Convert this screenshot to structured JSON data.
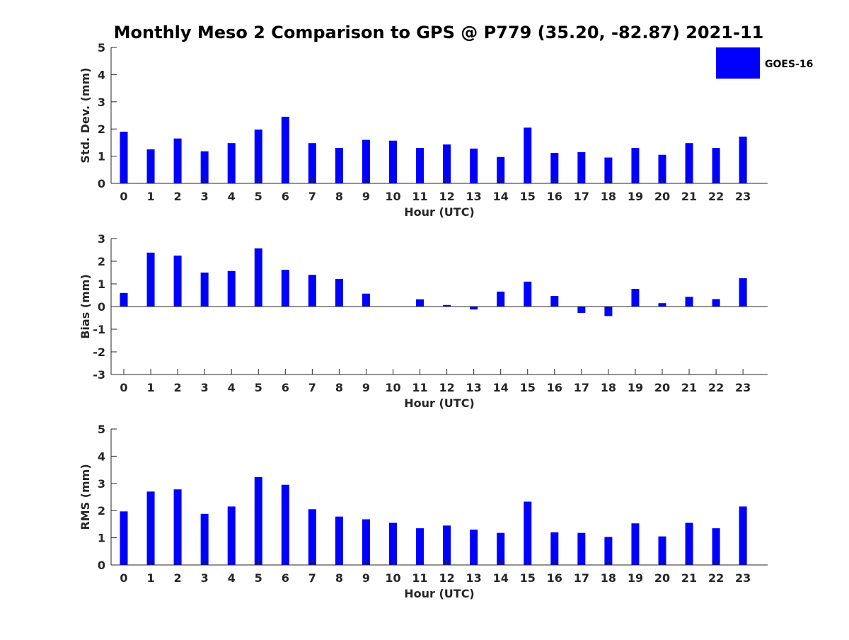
{
  "title": "Monthly Meso 2 Comparison to GPS @ P779 (35.20, -82.87) 2021-11",
  "bar_color": "#0000ff",
  "chart_data": [
    {
      "type": "bar",
      "title": "Monthly Meso 2 Comparison to GPS @ P779 (35.20, -82.87) 2021-11",
      "xlabel": "Hour (UTC)",
      "ylabel": "Std. Dev. (mm)",
      "categories": [
        "0",
        "1",
        "2",
        "3",
        "4",
        "5",
        "6",
        "7",
        "8",
        "9",
        "10",
        "11",
        "12",
        "13",
        "14",
        "15",
        "16",
        "17",
        "18",
        "19",
        "20",
        "21",
        "22",
        "23"
      ],
      "ylim": [
        0,
        5
      ],
      "yticks": [
        "0",
        "1",
        "2",
        "3",
        "4",
        "5"
      ],
      "legend": "top-right",
      "series": [
        {
          "name": "GOES-16",
          "values": [
            1.9,
            1.25,
            1.65,
            1.18,
            1.48,
            1.98,
            2.45,
            1.48,
            1.3,
            1.6,
            1.57,
            1.3,
            1.43,
            1.28,
            0.97,
            2.05,
            1.12,
            1.15,
            0.95,
            1.3,
            1.05,
            1.48,
            1.3,
            1.72
          ]
        }
      ]
    },
    {
      "type": "bar",
      "xlabel": "Hour (UTC)",
      "ylabel": "Bias (mm)",
      "categories": [
        "0",
        "1",
        "2",
        "3",
        "4",
        "5",
        "6",
        "7",
        "8",
        "9",
        "10",
        "11",
        "12",
        "13",
        "14",
        "15",
        "16",
        "17",
        "18",
        "19",
        "20",
        "21",
        "22",
        "23"
      ],
      "ylim": [
        -3,
        3
      ],
      "yticks": [
        "-3",
        "-2",
        "-1",
        "0",
        "1",
        "2",
        "3"
      ],
      "series": [
        {
          "name": "GOES-16",
          "values": [
            0.6,
            2.38,
            2.25,
            1.5,
            1.57,
            2.57,
            1.62,
            1.4,
            1.22,
            0.57,
            0.0,
            0.32,
            0.07,
            -0.13,
            0.66,
            1.1,
            0.47,
            -0.28,
            -0.42,
            0.78,
            0.15,
            0.43,
            0.33,
            1.25
          ]
        }
      ]
    },
    {
      "type": "bar",
      "xlabel": "Hour (UTC)",
      "ylabel": "RMS (mm)",
      "categories": [
        "0",
        "1",
        "2",
        "3",
        "4",
        "5",
        "6",
        "7",
        "8",
        "9",
        "10",
        "11",
        "12",
        "13",
        "14",
        "15",
        "16",
        "17",
        "18",
        "19",
        "20",
        "21",
        "22",
        "23"
      ],
      "ylim": [
        0,
        5
      ],
      "yticks": [
        "0",
        "1",
        "2",
        "3",
        "4",
        "5"
      ],
      "series": [
        {
          "name": "GOES-16",
          "values": [
            1.97,
            2.7,
            2.78,
            1.88,
            2.15,
            3.23,
            2.95,
            2.05,
            1.78,
            1.68,
            1.55,
            1.35,
            1.45,
            1.3,
            1.18,
            2.33,
            1.2,
            1.18,
            1.03,
            1.53,
            1.05,
            1.55,
            1.35,
            2.15
          ]
        }
      ]
    }
  ]
}
